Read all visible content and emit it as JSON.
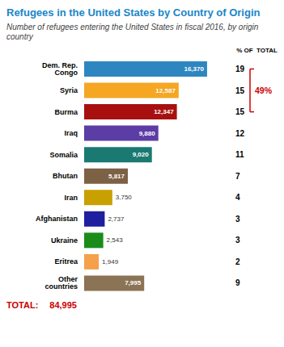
{
  "chart_data": {
    "type": "bar",
    "orientation": "horizontal",
    "title": "Refugees in the United States by Country of Origin",
    "title_color": "#1A86C8",
    "subtitle": "Number of refugees entering the United States in fiscal 2016, by origin country",
    "subtitle_color": "#444444",
    "categories": [
      "Dem. Rep. Congo",
      "Syria",
      "Burma",
      "Iraq",
      "Somalia",
      "Bhutan",
      "Iran",
      "Afghanistan",
      "Ukraine",
      "Eritrea",
      "Other countries"
    ],
    "values": [
      16370,
      12587,
      12347,
      9880,
      9020,
      5817,
      3750,
      2737,
      2543,
      1949,
      7995
    ],
    "value_labels": [
      "16,370",
      "12,587",
      "12,347",
      "9,880",
      "9,020",
      "5,817",
      "3,750",
      "2,737",
      "2,543",
      "1,949",
      "7,995"
    ],
    "colors": [
      "#2E86C1",
      "#F5A623",
      "#A81010",
      "#5B3DA5",
      "#1A7A72",
      "#7D6145",
      "#C8A000",
      "#1F1FA0",
      "#1A8C1A",
      "#F5A04A",
      "#8B7355"
    ],
    "data_labels": true,
    "xlim": [
      0,
      19500
    ],
    "tick_labels": "y",
    "grid": false,
    "percent_header": "% OF  TOTAL",
    "percentages": [
      19,
      15,
      15,
      12,
      11,
      7,
      4,
      3,
      3,
      2,
      9
    ],
    "highlight": {
      "label": "49%",
      "value": 49,
      "rows": [
        "Dem. Rep. Congo",
        "Syria",
        "Burma"
      ],
      "color": "#CC0000"
    },
    "total": {
      "label": "TOTAL:",
      "value": 84995,
      "value_label": "84,995",
      "color": "#CC0000"
    }
  }
}
